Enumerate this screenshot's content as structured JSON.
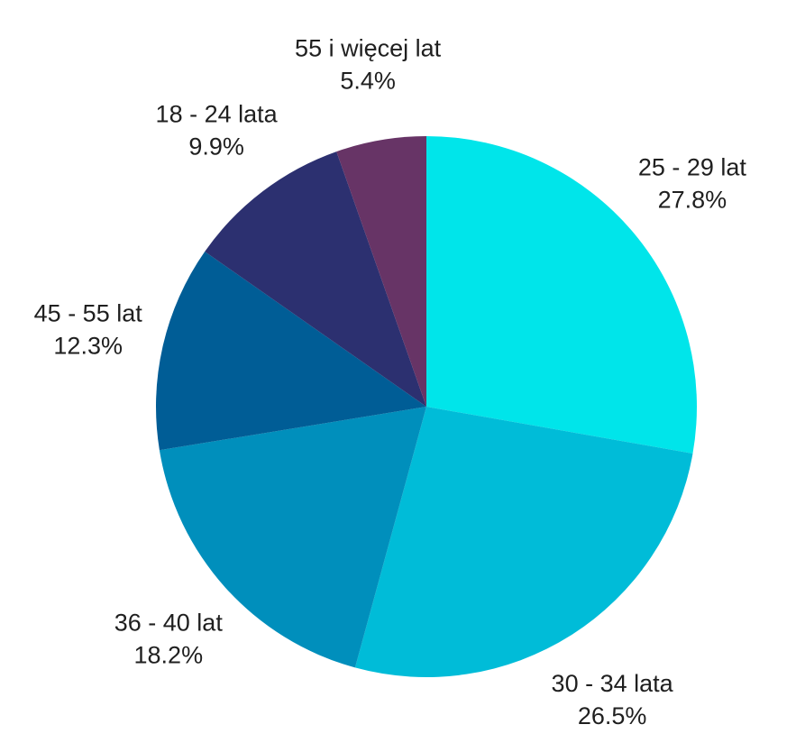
{
  "chart_data": {
    "type": "pie",
    "title": "",
    "start_angle_deg": 0,
    "direction": "clockwise",
    "slices": [
      {
        "label": "25 - 29 lat",
        "value": 27.8,
        "value_label": "27.8%",
        "color": "#00e5ea"
      },
      {
        "label": "30 - 34 lata",
        "value": 26.5,
        "value_label": "26.5%",
        "color": "#00bcd8"
      },
      {
        "label": "36 - 40 lat",
        "value": 18.2,
        "value_label": "18.2%",
        "color": "#008fbc"
      },
      {
        "label": "45 - 55 lat",
        "value": 12.3,
        "value_label": "12.3%",
        "color": "#005d96"
      },
      {
        "label": "18 - 24 lata",
        "value": 9.9,
        "value_label": "9.9%",
        "color": "#2c3070"
      },
      {
        "label": "55 i więcej lat",
        "value": 5.4,
        "value_label": "5.4%",
        "color": "#673466"
      }
    ]
  }
}
